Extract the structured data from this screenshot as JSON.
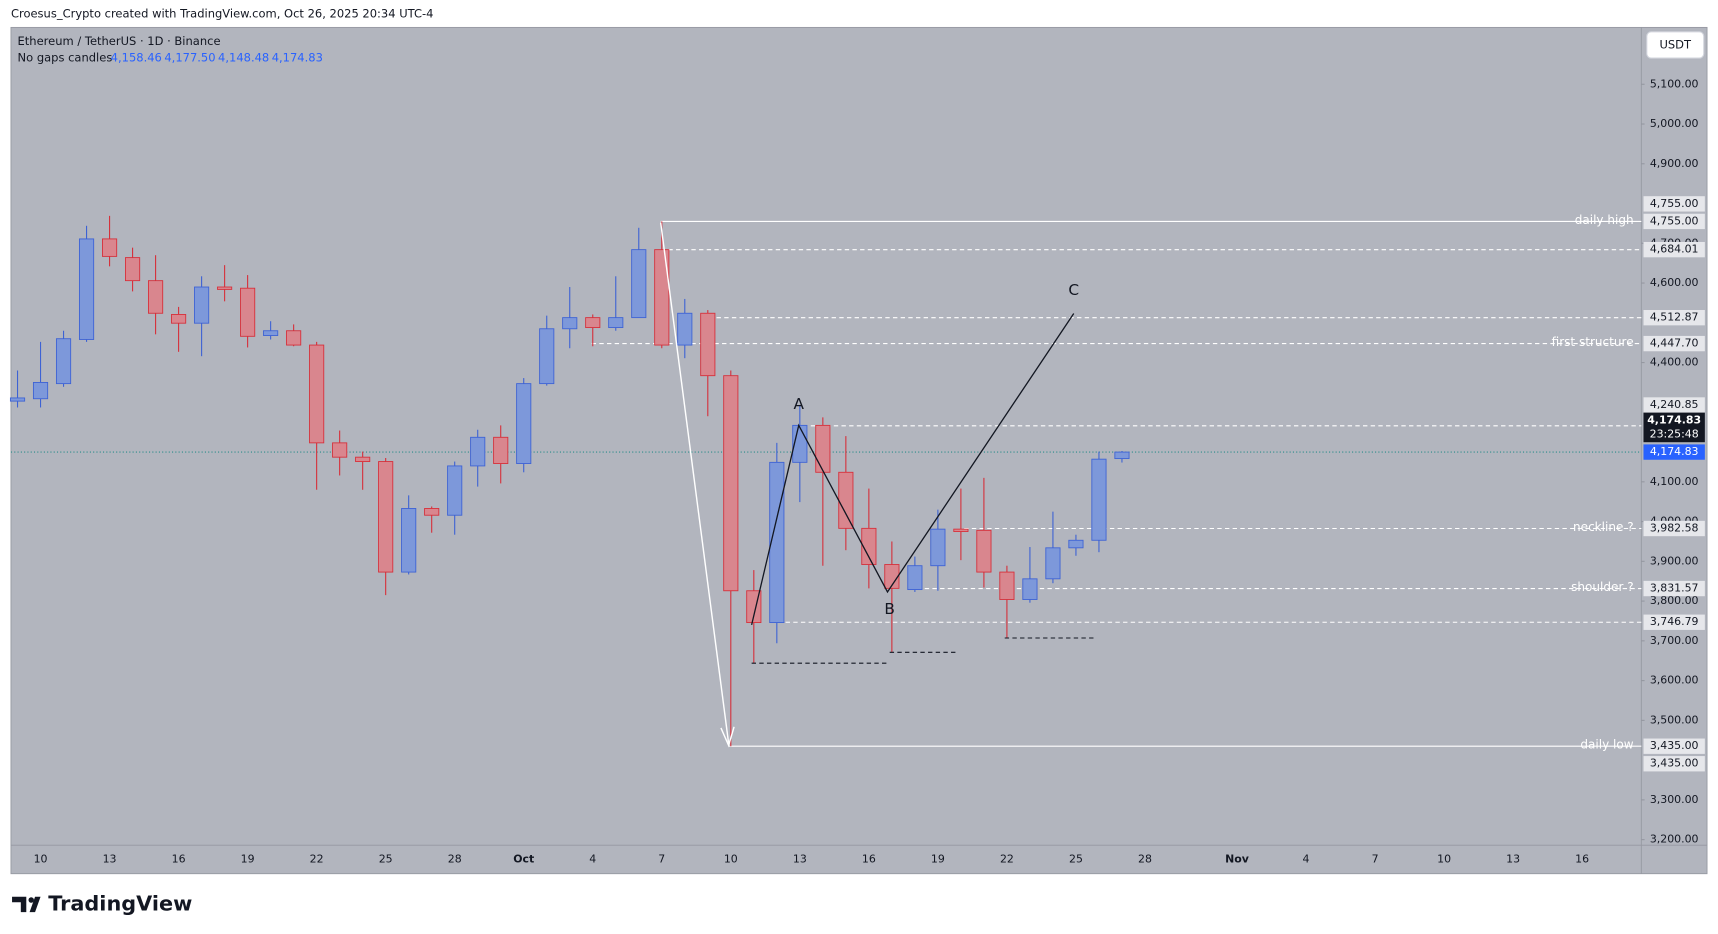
{
  "chart_data": {
    "type": "candlestick",
    "creator": "Croesus_Crypto created with TradingView.com, Oct 26, 2025 20:34 UTC-4",
    "symbol": "Ethereum / TetherUS · 1D · Binance",
    "candles_mode": "No gaps candles",
    "last_labels": [
      "4,158.46",
      "4,177.50",
      "4,148.48",
      "4,174.83"
    ],
    "countdown": "23:25:48",
    "currency": "USDT",
    "brand": "TradingView",
    "annotations": [
      "A",
      "B",
      "C"
    ],
    "categories": [
      null,
      "10",
      null,
      null,
      "13",
      null,
      null,
      "16",
      null,
      null,
      "19",
      null,
      null,
      "22",
      null,
      null,
      "25",
      null,
      null,
      "28",
      null,
      null,
      "Oct",
      null,
      null,
      "4",
      null,
      null,
      "7",
      null,
      null,
      "10",
      null,
      null,
      "13",
      null,
      null,
      "16",
      null,
      null,
      "19",
      null,
      null,
      "22",
      null,
      null,
      "25",
      null,
      null,
      "28",
      null,
      null,
      null,
      "Nov",
      null,
      null,
      "4",
      null,
      null,
      "7",
      null,
      null,
      "10",
      null,
      null,
      "13",
      null,
      null,
      "16",
      null,
      null
    ],
    "open": [
      4303,
      4309,
      4347,
      4458,
      4711,
      4664,
      4606,
      4521,
      4499,
      4590,
      4587,
      4468,
      4480,
      4444,
      4198,
      4162,
      4151,
      3873,
      4033,
      4016,
      4140,
      4212,
      4146,
      4347,
      4485,
      4513,
      4488,
      4513,
      4684,
      4444,
      4524,
      4367,
      3826,
      3746,
      4149,
      4242,
      4124,
      3983,
      3892,
      3829,
      3889,
      3981,
      3978,
      3873,
      3804,
      3856,
      3934,
      3953,
      4158.46,
      null,
      null,
      null,
      null,
      null,
      null,
      null,
      null,
      null,
      null,
      null,
      null,
      null,
      null,
      null,
      null,
      null,
      null,
      null,
      null,
      null,
      null
    ],
    "high": [
      4380,
      4452,
      4480,
      4744,
      4769,
      4689,
      4670,
      4540,
      4617,
      4645,
      4620,
      4504,
      4496,
      4452,
      4229,
      4176,
      4160,
      4066,
      4038,
      4151,
      4231,
      4242,
      4361,
      4518,
      4590,
      4521,
      4617,
      4739,
      4755,
      4560,
      4532,
      4380,
      3878,
      4198,
      4292,
      4262,
      4215,
      4083,
      3950,
      3912,
      4030,
      4083,
      4110,
      3889,
      3936,
      4025,
      3967,
      4176,
      4177.5,
      null,
      null,
      null,
      null,
      null,
      null,
      null,
      null,
      null,
      null,
      null,
      null,
      null,
      null,
      null,
      null,
      null,
      null,
      null,
      null,
      null,
      null
    ],
    "low": [
      4287,
      4287,
      4339,
      4452,
      4642,
      4579,
      4471,
      4427,
      4416,
      4554,
      4438,
      4458,
      4441,
      4080,
      4116,
      4080,
      3815,
      3867,
      3972,
      3967,
      4088,
      4096,
      4124,
      4342,
      4436,
      4441,
      4480,
      4513,
      4436,
      4411,
      4265,
      3435,
      3644,
      3694,
      4049,
      3889,
      3928,
      3832,
      3672,
      3823,
      3826,
      3903,
      3834,
      3707,
      3796,
      3845,
      3914,
      3923,
      4148.48,
      null,
      null,
      null,
      null,
      null,
      null,
      null,
      null,
      null,
      null,
      null,
      null,
      null,
      null,
      null,
      null,
      null,
      null,
      null,
      null,
      null,
      null
    ],
    "close": [
      4311,
      4350,
      4460,
      4711,
      4667,
      4606,
      4524,
      4499,
      4590,
      4584,
      4466,
      4480,
      4444,
      4198,
      4162,
      4151,
      3873,
      4033,
      4016,
      4140,
      4212,
      4146,
      4347,
      4485,
      4513,
      4488,
      4513,
      4684,
      4444,
      4524,
      4367,
      3826,
      3746,
      4149,
      4242,
      4124,
      3983,
      3892,
      3832,
      3889,
      3981,
      3975,
      3873,
      3804,
      3856,
      3934,
      3953,
      4157,
      4174.83,
      null,
      null,
      null,
      null,
      null,
      null,
      null,
      null,
      null,
      null,
      null,
      null,
      null,
      null,
      null,
      null,
      null,
      null,
      null,
      null,
      null,
      null
    ],
    "up_color": "#3d62d4",
    "up_fill": "#7d98da",
    "down_color": "#d62f3a",
    "down_fill": "#d9868e",
    "ylim": [
      3186,
      5243
    ],
    "yticks": [
      {
        "value": 3200,
        "label": "3,200.00"
      },
      {
        "value": 3300,
        "label": "3,300.00"
      },
      {
        "value": 3500,
        "label": "3,500.00"
      },
      {
        "value": 3600,
        "label": "3,600.00"
      },
      {
        "value": 3700,
        "label": "3,700.00"
      },
      {
        "value": 3800,
        "label": "3,800.00"
      },
      {
        "value": 3900,
        "label": "3,900.00"
      },
      {
        "value": 4000,
        "label": "4,000.00"
      },
      {
        "value": 4100,
        "label": "4,100.00"
      },
      {
        "value": 4400,
        "label": "4,400.00"
      },
      {
        "value": 4600,
        "label": "4,600.00"
      },
      {
        "value": 4700,
        "label": "4,700.00"
      },
      {
        "value": 4900,
        "label": "4,900.00"
      },
      {
        "value": 5000,
        "label": "5,000.00"
      },
      {
        "value": 5100,
        "label": "5,100.00"
      }
    ],
    "grid": false,
    "levels": [
      {
        "value": 4755,
        "label": "4,755.00",
        "text": "daily high",
        "style": "solid"
      },
      {
        "value": 4684.01,
        "label": "4,684.01",
        "style": "dashed"
      },
      {
        "value": 4512.87,
        "label": "4,512.87",
        "style": "dashed"
      },
      {
        "value": 4447.7,
        "label": "4,447.70",
        "text": "first structure",
        "style": "dashed"
      },
      {
        "value": 4240.85,
        "label": "4,240.85",
        "style": "dashed"
      },
      {
        "value": 3982.58,
        "label": "3,982.58",
        "text": "neckline ?",
        "style": "dashed"
      },
      {
        "value": 3831.57,
        "label": "3,831.57",
        "text": "shoulder ?",
        "style": "dashed"
      },
      {
        "value": 3746.79,
        "label": "3,746.79",
        "style": "dashed"
      },
      {
        "value": 3435,
        "label": "3,435.00",
        "text": "daily low",
        "style": "solid"
      }
    ]
  }
}
